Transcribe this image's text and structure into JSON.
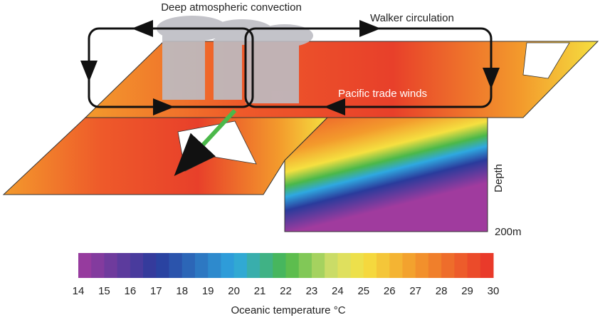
{
  "labels": {
    "convection": "Deep atmospheric convection",
    "walker": "Walker circulation",
    "trade_winds": "Pacific trade winds",
    "depth": "Depth",
    "depth_value": "200m"
  },
  "colorbar": {
    "ticks": [
      14,
      15,
      16,
      17,
      18,
      19,
      20,
      21,
      22,
      23,
      24,
      25,
      26,
      27,
      28,
      29,
      30
    ],
    "label": "Oceanic temperature °C"
  }
}
